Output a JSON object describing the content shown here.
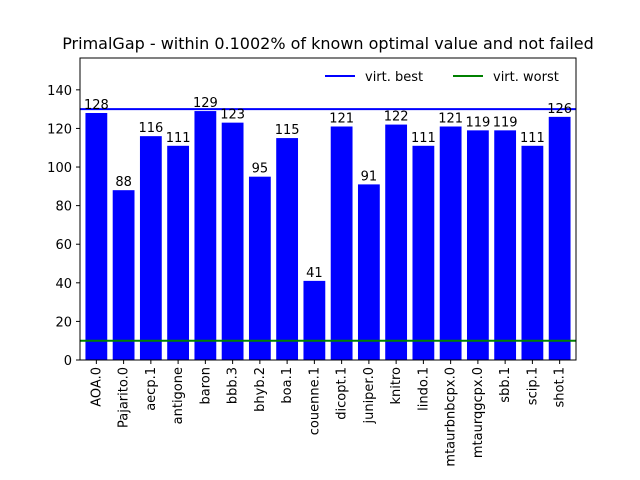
{
  "chart_data": {
    "type": "bar",
    "title": "PrimalGap - within 0.1002% of known optimal value and not failed",
    "xlabel": "",
    "ylabel": "",
    "categories": [
      "AOA.0",
      "Pajarito.0",
      "aecp.1",
      "antigone",
      "baron",
      "bbb.3",
      "bhyb.2",
      "boa.1",
      "couenne.1",
      "dicopt.1",
      "juniper.0",
      "knitro",
      "lindo.1",
      "mtaurbnbcpx.0",
      "mtaurqgcpx.0",
      "sbb.1",
      "scip.1",
      "shot.1"
    ],
    "values": [
      128,
      88,
      116,
      111,
      129,
      123,
      95,
      115,
      41,
      121,
      91,
      122,
      111,
      121,
      119,
      119,
      111,
      126
    ],
    "ylim": [
      0,
      156.5
    ],
    "yticks": [
      0,
      20,
      40,
      60,
      80,
      100,
      120,
      140
    ],
    "bar_color": "#0000ff",
    "hlines": [
      {
        "name": "virt. best",
        "value": 130,
        "color": "#0000ff"
      },
      {
        "name": "virt. worst",
        "value": 10,
        "color": "#008000"
      }
    ],
    "legend_position": "top-right",
    "grid": false
  }
}
